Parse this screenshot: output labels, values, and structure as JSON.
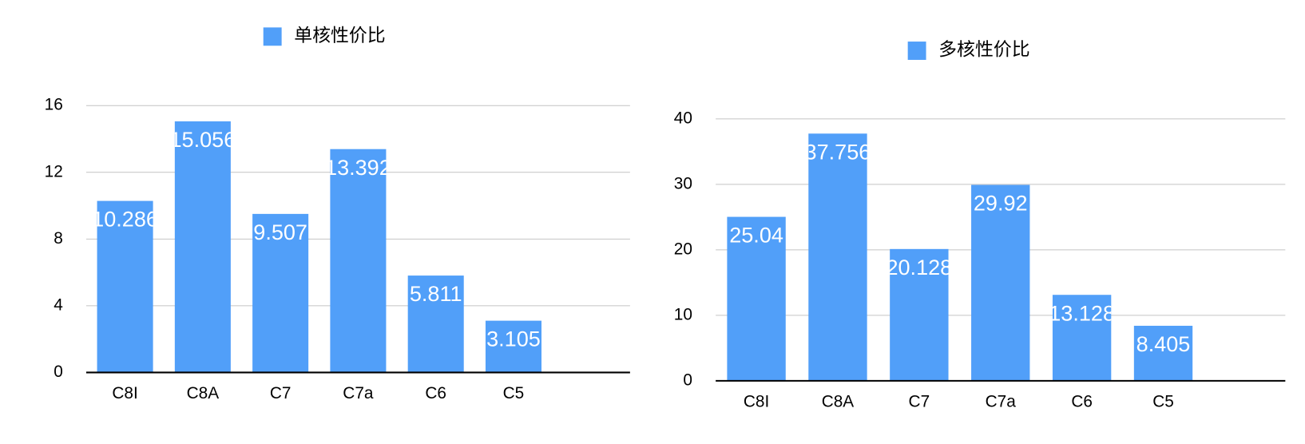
{
  "chart_data": [
    {
      "type": "bar",
      "legend": "单核性价比",
      "color": "#519ff9",
      "categories": [
        "C8I",
        "C8A",
        "C7",
        "C7a",
        "C6",
        "C5",
        null
      ],
      "values": [
        10.286,
        15.056,
        9.507,
        13.392,
        5.811,
        3.105,
        null
      ],
      "ylim": [
        0,
        16
      ],
      "yticks": [
        0,
        4,
        8,
        12,
        16
      ],
      "grid": true
    },
    {
      "type": "bar",
      "legend": "多核性价比",
      "color": "#519ff9",
      "categories": [
        "C8I",
        "C8A",
        "C7",
        "C7a",
        "C6",
        "C5",
        null
      ],
      "values": [
        25.04,
        37.756,
        20.128,
        29.92,
        13.128,
        8.405,
        null
      ],
      "ylim": [
        0,
        40
      ],
      "yticks": [
        0,
        10,
        20,
        30,
        40
      ],
      "grid": true
    }
  ]
}
